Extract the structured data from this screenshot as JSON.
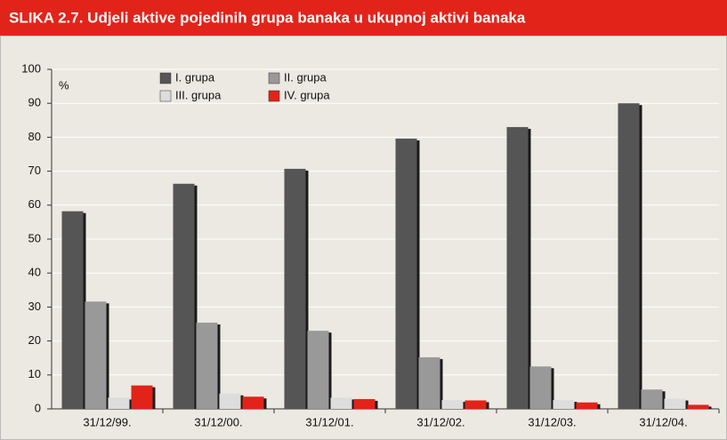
{
  "chart_data": {
    "type": "bar",
    "title": "SLIKA 2.7. Udjeli aktive pojedinih grupa banaka u ukupnoj aktivi banaka",
    "y_label": "%",
    "categories": [
      "31/12/99.",
      "31/12/00.",
      "31/12/01.",
      "31/12/02.",
      "31/12/03.",
      "31/12/04."
    ],
    "series": [
      {
        "name": "I. grupa",
        "color": "#555555",
        "values": [
          58.2,
          66.3,
          70.7,
          79.6,
          83.0,
          90.0
        ]
      },
      {
        "name": "II. grupa",
        "color": "#999999",
        "values": [
          31.6,
          25.4,
          23.0,
          15.2,
          12.5,
          5.7
        ]
      },
      {
        "name": "III. grupa",
        "color": "#dddddd",
        "values": [
          3.3,
          4.5,
          3.3,
          2.6,
          2.6,
          3.0
        ]
      },
      {
        "name": "IV. grupa",
        "color": "#e2231a",
        "values": [
          6.9,
          3.6,
          2.9,
          2.5,
          1.9,
          1.2
        ]
      }
    ],
    "ylim": [
      0,
      100
    ],
    "yticks": [
      0,
      10,
      20,
      30,
      40,
      50,
      60,
      70,
      80,
      90,
      100
    ],
    "grid": true
  }
}
